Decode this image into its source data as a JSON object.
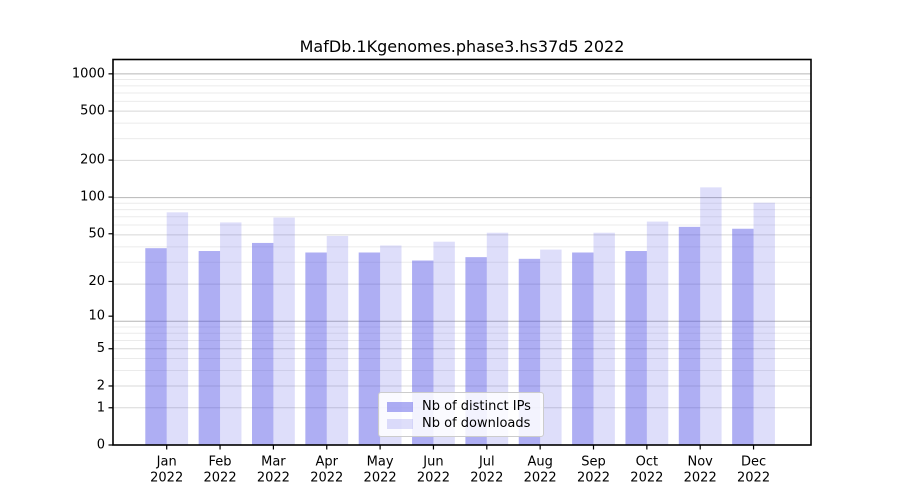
{
  "title": "MafDb.1Kgenomes.phase3.hs37d5 2022",
  "chart_data": {
    "type": "bar",
    "title": "MafDb.1Kgenomes.phase3.hs37d5 2022",
    "scale": "log1p",
    "grid": true,
    "legend_position": "lower center",
    "categories": [
      "Jan",
      "Feb",
      "Mar",
      "Apr",
      "May",
      "Jun",
      "Jul",
      "Aug",
      "Sep",
      "Oct",
      "Nov",
      "Dec"
    ],
    "year_label": "2022",
    "series": [
      {
        "name": "Nb of distinct IPs",
        "base_color": "#5252e6",
        "fill_alpha": 0.47,
        "values": [
          38,
          36,
          42,
          35,
          35,
          30,
          32,
          31,
          35,
          36,
          57,
          55
        ]
      },
      {
        "name": "Nb of downloads",
        "base_color": "#5252e6",
        "fill_alpha": 0.19,
        "values": [
          75,
          62,
          68,
          48,
          40,
          43,
          51,
          37,
          51,
          63,
          120,
          90
        ]
      }
    ],
    "y_ticks": [
      0,
      1,
      2,
      5,
      10,
      20,
      50,
      100,
      200,
      500,
      1000
    ],
    "y_tick_labels": [
      "0",
      "1",
      "2",
      "5",
      "10",
      "20",
      "50",
      "100",
      "200",
      "500",
      "1000"
    ],
    "ylim": [
      0,
      1300
    ],
    "xlabel": "",
    "ylabel": "",
    "grid_colors": {
      "major": "#b6b6b6",
      "labeled_minor": "#d8d8d8",
      "minor": "#ebebeb"
    },
    "spine_color": "#000000",
    "background_color": "#ffffff"
  },
  "legend": {
    "items": [
      {
        "label": "Nb of distinct IPs"
      },
      {
        "label": "Nb of downloads"
      }
    ]
  }
}
